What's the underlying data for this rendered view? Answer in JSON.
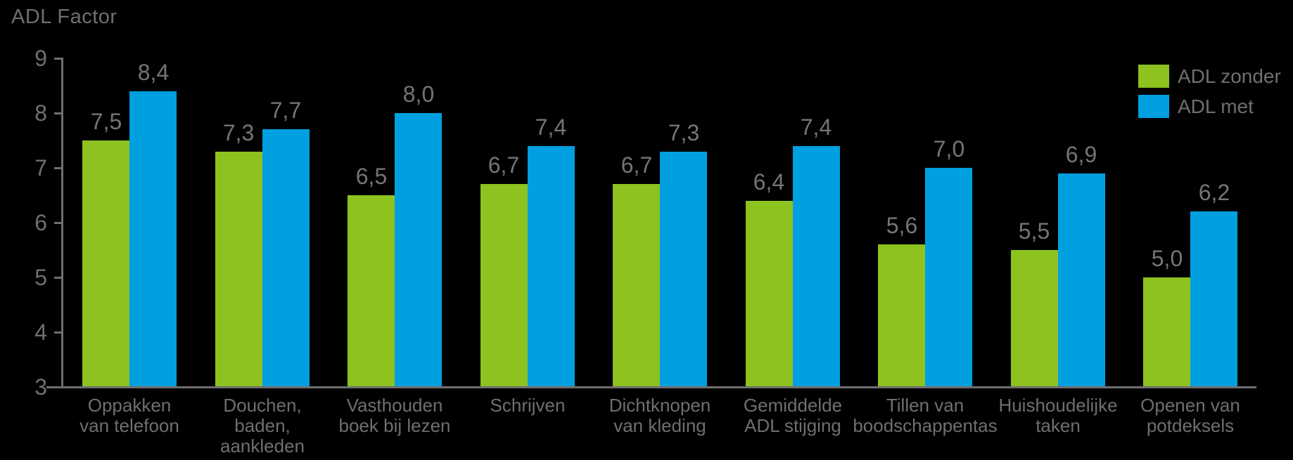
{
  "title": "ADL Factor",
  "colors": {
    "background": "#000000",
    "axis": "#6f6f6f",
    "text": "#6f6f6f",
    "series_zonder": "#8DC21F",
    "series_met": "#00A0E0"
  },
  "legend": {
    "items": [
      {
        "label": "ADL zonder",
        "color": "#8DC21F"
      },
      {
        "label": "ADL met",
        "color": "#00A0E0"
      }
    ]
  },
  "chart_data": {
    "type": "bar",
    "title": "ADL Factor",
    "ylabel": "ADL Factor",
    "xlabel": "",
    "ylim": [
      3,
      9
    ],
    "yticks": [
      3,
      4,
      5,
      6,
      7,
      8,
      9
    ],
    "grid": false,
    "legend_position": "top-right",
    "background": "#000000",
    "categories": [
      "Oppakken van telefoon",
      "Douchen, baden, aankleden",
      "Vasthouden boek bij lezen",
      "Schrijven",
      "Dichtknopen van kleding",
      "Gemiddelde ADL stijging",
      "Tillen van boodschappentas",
      "Huishoudelijke taken",
      "Openen van potdeksels"
    ],
    "category_lines": [
      [
        "Oppakken",
        "van telefoon"
      ],
      [
        "Douchen,",
        "baden,",
        "aankleden"
      ],
      [
        "Vasthouden",
        "boek bij lezen"
      ],
      [
        "Schrijven"
      ],
      [
        "Dichtknopen",
        "van kleding"
      ],
      [
        "Gemiddelde",
        "ADL stijging"
      ],
      [
        "Tillen van",
        "boodschappentas"
      ],
      [
        "Huishoudelijke",
        "taken"
      ],
      [
        "Openen van",
        "potdeksels"
      ]
    ],
    "series": [
      {
        "name": "ADL zonder",
        "color": "#8DC21F",
        "values": [
          7.5,
          7.3,
          6.5,
          6.7,
          6.7,
          6.4,
          5.6,
          5.5,
          5.0
        ],
        "labels": [
          "7,5",
          "7,3",
          "6,5",
          "6,7",
          "6,7",
          "6,4",
          "5,6",
          "5,5",
          "5,0"
        ]
      },
      {
        "name": "ADL met",
        "color": "#00A0E0",
        "values": [
          8.4,
          7.7,
          8.0,
          7.4,
          7.3,
          7.4,
          7.0,
          6.9,
          6.2
        ],
        "labels": [
          "8,4",
          "7,7",
          "8,0",
          "7,4",
          "7,3",
          "7,4",
          "7,0",
          "6,9",
          "6,2"
        ]
      }
    ]
  }
}
